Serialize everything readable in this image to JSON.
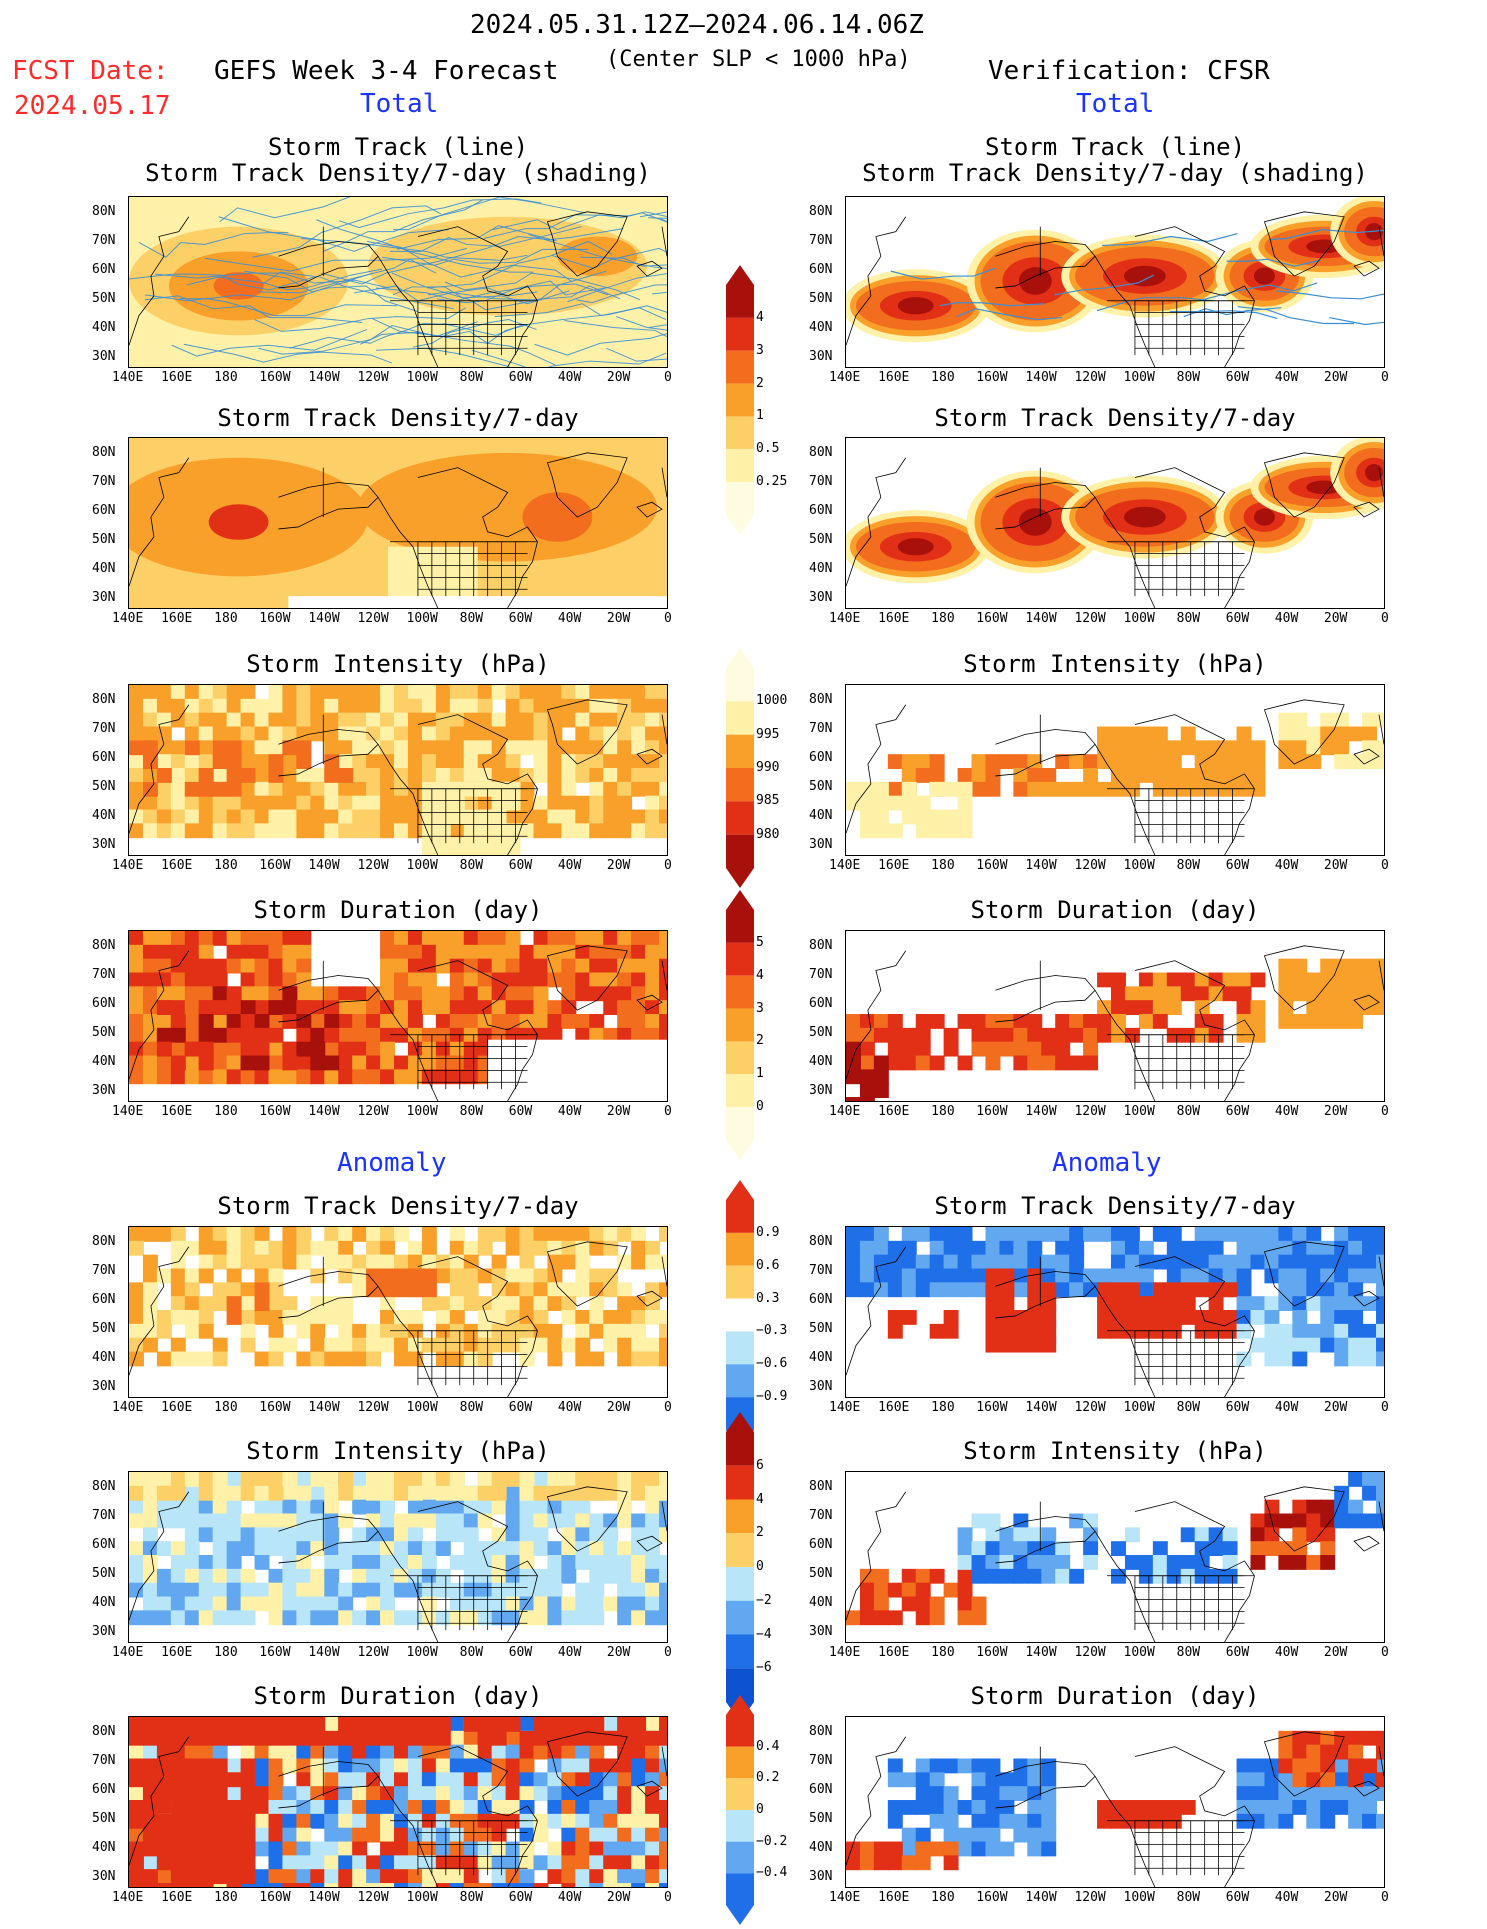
{
  "header": {
    "date_range": "2024.05.31.12Z–2024.06.14.06Z",
    "fcst_label": "FCST Date:",
    "fcst_date": "2024.05.17",
    "forecast_title": "GEFS Week 3-4 Forecast",
    "criterion": "(Center SLP < 1000 hPa)",
    "verification": "Verification: CFSR",
    "total_left": "Total",
    "total_right": "Total",
    "anomaly_left": "Anomaly",
    "anomaly_right": "Anomaly"
  },
  "panels": {
    "track_line": "Storm Track (line)",
    "track_density_shading": "Storm Track Density/7-day (shading)",
    "track_density": "Storm Track Density/7-day",
    "intensity": "Storm Intensity (hPa)",
    "duration": "Storm Duration (day)"
  },
  "axes": {
    "lat_ticks": [
      "80N",
      "70N",
      "60N",
      "50N",
      "40N",
      "30N"
    ],
    "lon_ticks": [
      "140E",
      "160E",
      "180",
      "160W",
      "140W",
      "120W",
      "100W",
      "80W",
      "60W",
      "40W",
      "20W",
      "0"
    ]
  },
  "colorbars": {
    "density": [
      "4",
      "3",
      "2",
      "1",
      "0.5",
      "0.25"
    ],
    "intensity": [
      "1000",
      "995",
      "990",
      "985",
      "980"
    ],
    "duration": [
      "5",
      "4",
      "3",
      "2",
      "1",
      "0"
    ],
    "density_anom": [
      "0.9",
      "0.6",
      "0.3",
      "−0.3",
      "−0.6",
      "−0.9"
    ],
    "intensity_anom": [
      "6",
      "4",
      "2",
      "0",
      "−2",
      "−4",
      "−6"
    ],
    "duration_anom": [
      "0.4",
      "0.2",
      "0",
      "−0.2",
      "−0.4"
    ]
  },
  "colors": {
    "pale_yellow": "#fff2a8",
    "light_orange": "#fdd067",
    "orange": "#f9a02a",
    "dark_orange": "#f26d1d",
    "red": "#e23016",
    "dark_red": "#a8100c",
    "light_blue": "#b8e6f8",
    "mid_blue": "#62a8f0",
    "blue": "#1f6fe8",
    "track_line": "#3a8fd6"
  }
}
